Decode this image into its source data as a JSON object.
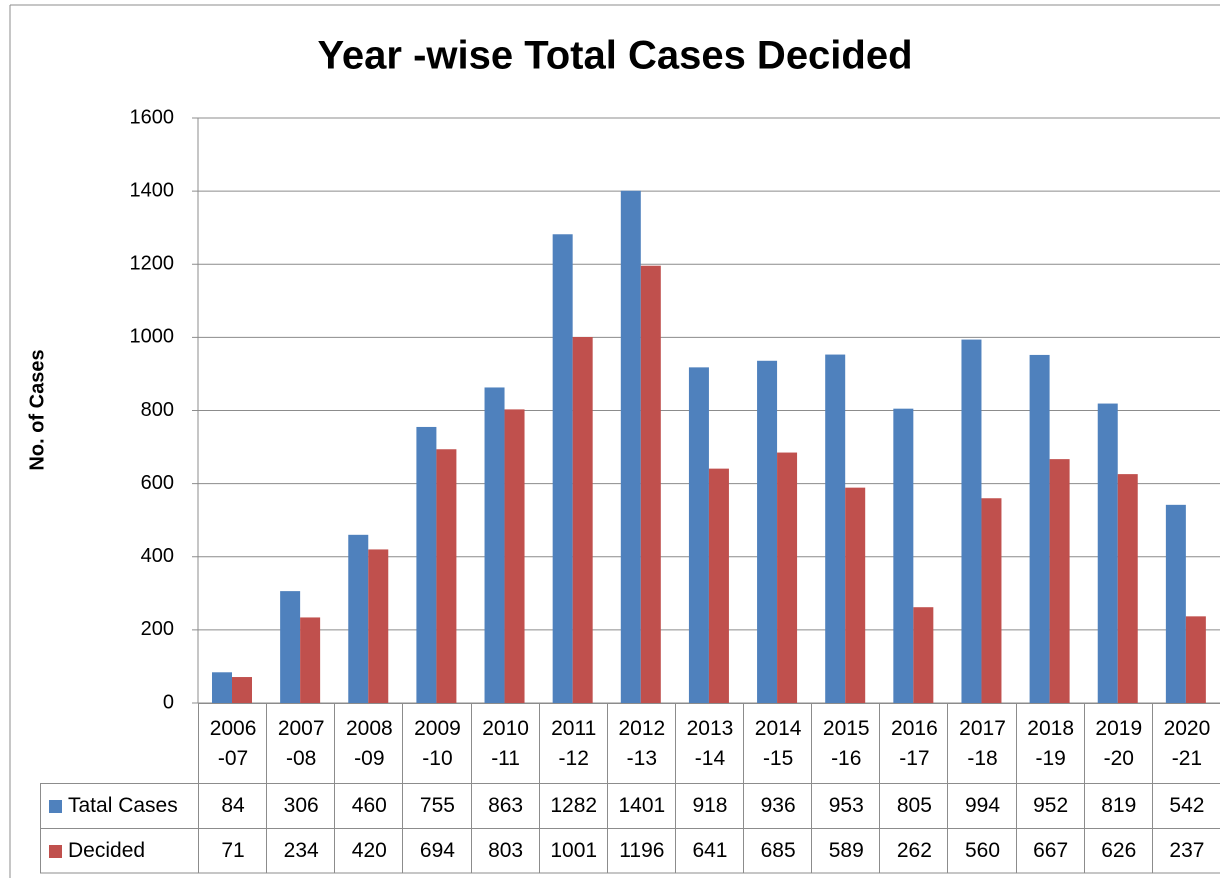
{
  "chart_data": {
    "type": "bar",
    "title": "Year -wise Total Cases Decided",
    "y_label": "No. of Cases",
    "categories": [
      "2006\n-07",
      "2007\n-08",
      "2008\n-09",
      "2009\n-10",
      "2010\n-11",
      "2011\n-12",
      "2012\n-13",
      "2013\n-14",
      "2014\n-15",
      "2015\n-16",
      "2016\n-17",
      "2017\n-18",
      "2018\n-19",
      "2019\n-20",
      "2020\n-21"
    ],
    "series": [
      {
        "name": "Tatal Cases",
        "color": "#4f81bd",
        "values": [
          84,
          306,
          460,
          755,
          863,
          1282,
          1401,
          918,
          936,
          953,
          805,
          994,
          952,
          819,
          542
        ]
      },
      {
        "name": "Decided",
        "color": "#c0504d",
        "values": [
          71,
          234,
          420,
          694,
          803,
          1001,
          1196,
          641,
          685,
          589,
          262,
          560,
          667,
          626,
          237
        ]
      }
    ],
    "ylim": [
      0,
      1600
    ],
    "yticks": [
      0,
      200,
      400,
      600,
      800,
      1000,
      1200,
      1400,
      1600
    ],
    "grid": true,
    "legend": "data-table"
  }
}
